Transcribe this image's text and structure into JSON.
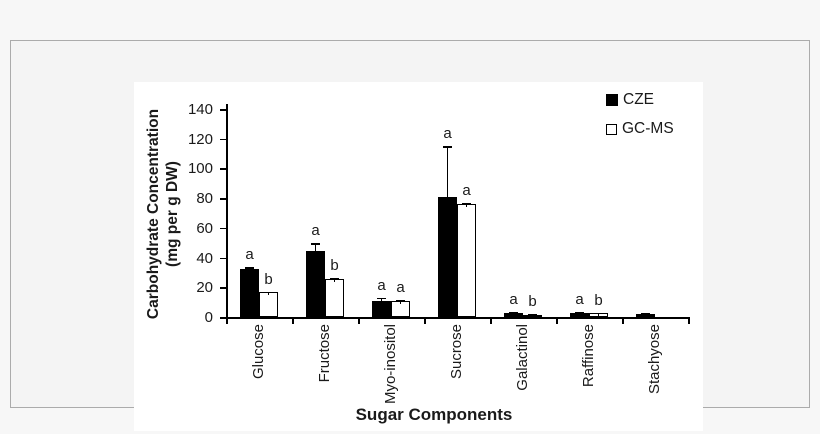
{
  "figure": {
    "background": "#ffffff",
    "page_background": "#f4f4f4",
    "frame_border_color": "#ababab"
  },
  "chart_data": {
    "type": "bar",
    "title": "",
    "xlabel": "Sugar Components",
    "ylabel": "Carbohydrate Concentration (mg per g DW)",
    "ylabel_lines": [
      "Carbohydrate Concentration",
      "(mg per g DW)"
    ],
    "ylim": [
      0,
      140
    ],
    "yticks": [
      0,
      20,
      40,
      60,
      80,
      100,
      120,
      140
    ],
    "grid": false,
    "legend_position": "top-right",
    "categories": [
      "Glucose",
      "Fructose",
      "Myo-inositol",
      "Sucrose",
      "Galactinol",
      "Raffinose",
      "Stachyose"
    ],
    "series": [
      {
        "name": "CZE",
        "fill": "#000000",
        "stroke": "#000000",
        "values": [
          32,
          44.5,
          10.5,
          81,
          2.8,
          3,
          2
        ],
        "errors": [
          1.5,
          5,
          2.5,
          34,
          0.4,
          0.4,
          0.4
        ],
        "sig_letters": [
          "a",
          "a",
          "a",
          "a",
          "a",
          "a",
          ""
        ]
      },
      {
        "name": "GC-MS",
        "fill": "#ffffff",
        "stroke": "#000000",
        "values": [
          16.5,
          25.5,
          10.5,
          76,
          1.5,
          2.5,
          0
        ],
        "errors": [
          0.5,
          0.5,
          0.7,
          1,
          0.3,
          0.3,
          0
        ],
        "sig_letters": [
          "b",
          "b",
          "a",
          "a",
          "b",
          "b",
          ""
        ]
      }
    ]
  }
}
